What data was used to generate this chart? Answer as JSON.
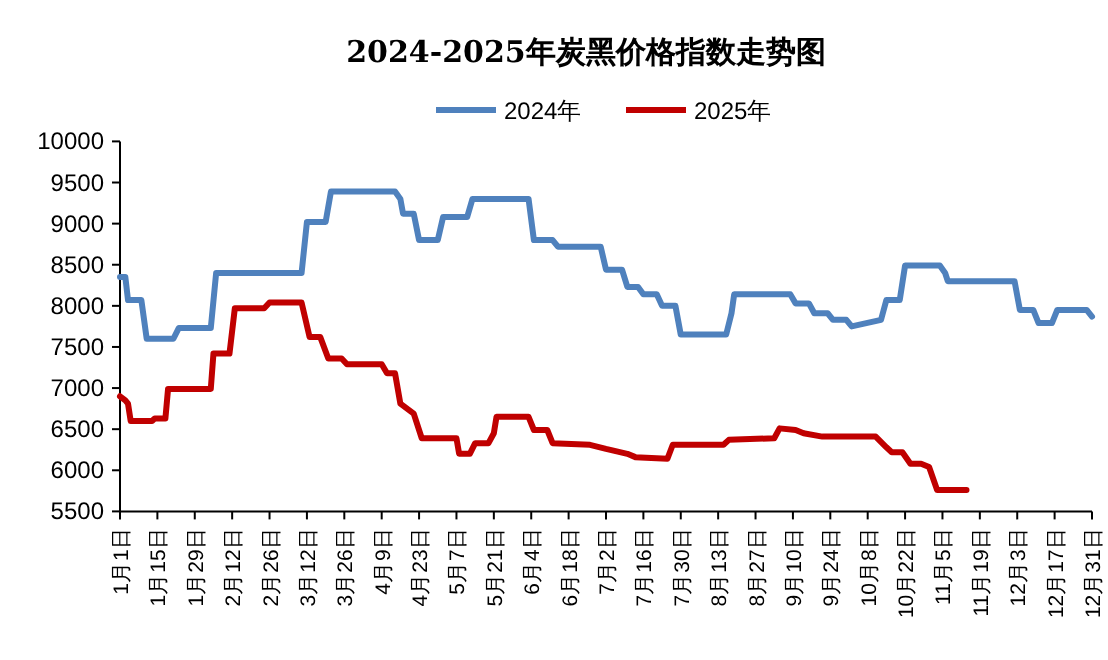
{
  "chart_data": {
    "type": "line",
    "title": "2024-2025年炭黑价格指数走势图",
    "legend": "top",
    "grid": false,
    "marker": "none",
    "line_style": "solid",
    "xlim": [
      "--01-01",
      "--12-31"
    ],
    "xticks": [
      {
        "value": "--01-01",
        "label": "1月1日"
      },
      {
        "value": "--01-15",
        "label": "1月15日"
      },
      {
        "value": "--01-29",
        "label": "1月29日"
      },
      {
        "value": "--02-12",
        "label": "2月12日"
      },
      {
        "value": "--02-26",
        "label": "2月26日"
      },
      {
        "value": "--03-12",
        "label": "3月12日"
      },
      {
        "value": "--03-26",
        "label": "3月26日"
      },
      {
        "value": "--04-09",
        "label": "4月9日"
      },
      {
        "value": "--04-23",
        "label": "4月23日"
      },
      {
        "value": "--05-07",
        "label": "5月7日"
      },
      {
        "value": "--05-21",
        "label": "5月21日"
      },
      {
        "value": "--06-04",
        "label": "6月4日"
      },
      {
        "value": "--06-18",
        "label": "6月18日"
      },
      {
        "value": "--07-02",
        "label": "7月2日"
      },
      {
        "value": "--07-16",
        "label": "7月16日"
      },
      {
        "value": "--07-30",
        "label": "7月30日"
      },
      {
        "value": "--08-13",
        "label": "8月13日"
      },
      {
        "value": "--08-27",
        "label": "8月27日"
      },
      {
        "value": "--09-10",
        "label": "9月10日"
      },
      {
        "value": "--09-24",
        "label": "9月24日"
      },
      {
        "value": "--10-08",
        "label": "10月8日"
      },
      {
        "value": "--10-22",
        "label": "10月22日"
      },
      {
        "value": "--11-05",
        "label": "11月5日"
      },
      {
        "value": "--11-19",
        "label": "11月19日"
      },
      {
        "value": "--12-03",
        "label": "12月3日"
      },
      {
        "value": "--12-17",
        "label": "12月17日"
      },
      {
        "value": "--12-31",
        "label": "12月31日"
      }
    ],
    "ylim": [
      5500,
      10000
    ],
    "yticks": [
      5500,
      6000,
      6500,
      7000,
      7500,
      8000,
      8500,
      9000,
      9500,
      10000
    ],
    "series": [
      {
        "name": "2024年",
        "color": "#4f81bd",
        "x": [
          "--01-01",
          "--01-03",
          "--01-04",
          "--01-09",
          "--01-11",
          "--01-21",
          "--01-23",
          "--02-04",
          "--02-06",
          "--03-10",
          "--03-12",
          "--03-19",
          "--03-21",
          "--04-14",
          "--04-16",
          "--04-17",
          "--04-21",
          "--04-23",
          "--04-30",
          "--05-02",
          "--05-11",
          "--05-13",
          "--06-03",
          "--06-05",
          "--06-12",
          "--06-14",
          "--06-30",
          "--07-02",
          "--07-08",
          "--07-10",
          "--07-14",
          "--07-16",
          "--07-21",
          "--07-23",
          "--07-28",
          "--07-30",
          "--08-16",
          "--08-18",
          "--08-19",
          "--09-09",
          "--09-11",
          "--09-16",
          "--09-18",
          "--09-23",
          "--09-25",
          "--09-30",
          "--10-02",
          "--10-13",
          "--10-15",
          "--10-20",
          "--10-22",
          "--11-04",
          "--11-06",
          "--11-07",
          "--12-02",
          "--12-04",
          "--12-09",
          "--12-11",
          "--12-16",
          "--12-18",
          "--12-29",
          "--12-31"
        ],
        "values": [
          8350,
          8350,
          8070,
          8070,
          7600,
          7600,
          7730,
          7730,
          8400,
          8400,
          9020,
          9020,
          9390,
          9390,
          9300,
          9120,
          9120,
          8800,
          8800,
          9080,
          9080,
          9300,
          9300,
          8800,
          8800,
          8720,
          8720,
          8440,
          8440,
          8230,
          8230,
          8140,
          8140,
          8000,
          8000,
          7650,
          7650,
          7910,
          8140,
          8140,
          8030,
          8030,
          7910,
          7910,
          7830,
          7830,
          7750,
          7830,
          8070,
          8070,
          8490,
          8490,
          8400,
          8300,
          8300,
          7950,
          7950,
          7790,
          7790,
          7950,
          7950,
          7870
        ]
      },
      {
        "name": "2025年",
        "color": "#c00000",
        "x": [
          "--01-01",
          "--01-03",
          "--01-04",
          "--01-05",
          "--01-13",
          "--01-14",
          "--01-18",
          "--01-19",
          "--02-04",
          "--02-05",
          "--02-11",
          "--02-13",
          "--02-24",
          "--02-26",
          "--03-10",
          "--03-13",
          "--03-17",
          "--03-20",
          "--03-25",
          "--03-27",
          "--04-09",
          "--04-11",
          "--04-14",
          "--04-16",
          "--04-21",
          "--04-24",
          "--05-07",
          "--05-08",
          "--05-12",
          "--05-14",
          "--05-19",
          "--05-21",
          "--05-22",
          "--06-03",
          "--06-05",
          "--06-10",
          "--06-12",
          "--06-26",
          "--07-02",
          "--07-10",
          "--07-13",
          "--07-25",
          "--07-27",
          "--08-15",
          "--08-17",
          "--09-03",
          "--09-05",
          "--09-11",
          "--09-14",
          "--09-21",
          "--10-11",
          "--10-15",
          "--10-17",
          "--10-21",
          "--10-24",
          "--10-28",
          "--10-31",
          "--11-03",
          "--11-14"
        ],
        "values": [
          6900,
          6850,
          6810,
          6600,
          6600,
          6630,
          6630,
          6990,
          6990,
          7420,
          7420,
          7970,
          7970,
          8040,
          8040,
          7620,
          7620,
          7360,
          7360,
          7290,
          7290,
          7180,
          7180,
          6810,
          6690,
          6390,
          6390,
          6200,
          6200,
          6330,
          6330,
          6450,
          6650,
          6650,
          6490,
          6490,
          6330,
          6310,
          6260,
          6200,
          6160,
          6140,
          6310,
          6310,
          6370,
          6390,
          6510,
          6490,
          6450,
          6410,
          6410,
          6280,
          6220,
          6220,
          6080,
          6080,
          6040,
          5760,
          5760
        ]
      }
    ]
  }
}
